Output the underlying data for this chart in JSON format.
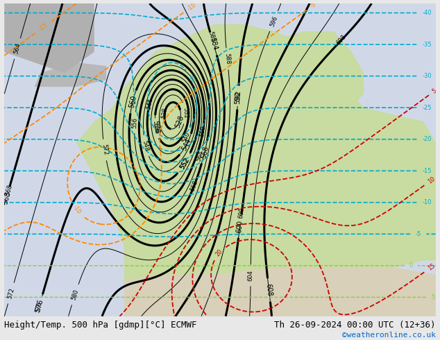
{
  "title_left": "Height/Temp. 500 hPa [gdmp][°C] ECMWF",
  "title_right": "Th 26-09-2024 00:00 UTC (12+36)",
  "credit": "©weatheronline.co.uk",
  "bg_ocean": "#d0d8e8",
  "bg_land_light": "#c8dba0",
  "bg_gray": "#b8b8b8",
  "contour_z500_color": "#000000",
  "contour_temp_neg_color": "#00aacc",
  "contour_temp_pos_color": "#88cc44",
  "contour_slp_orange_color": "#ff8800",
  "contour_slp_red_color": "#cc0000",
  "title_fontsize": 9,
  "credit_fontsize": 8,
  "credit_color": "#0066cc"
}
